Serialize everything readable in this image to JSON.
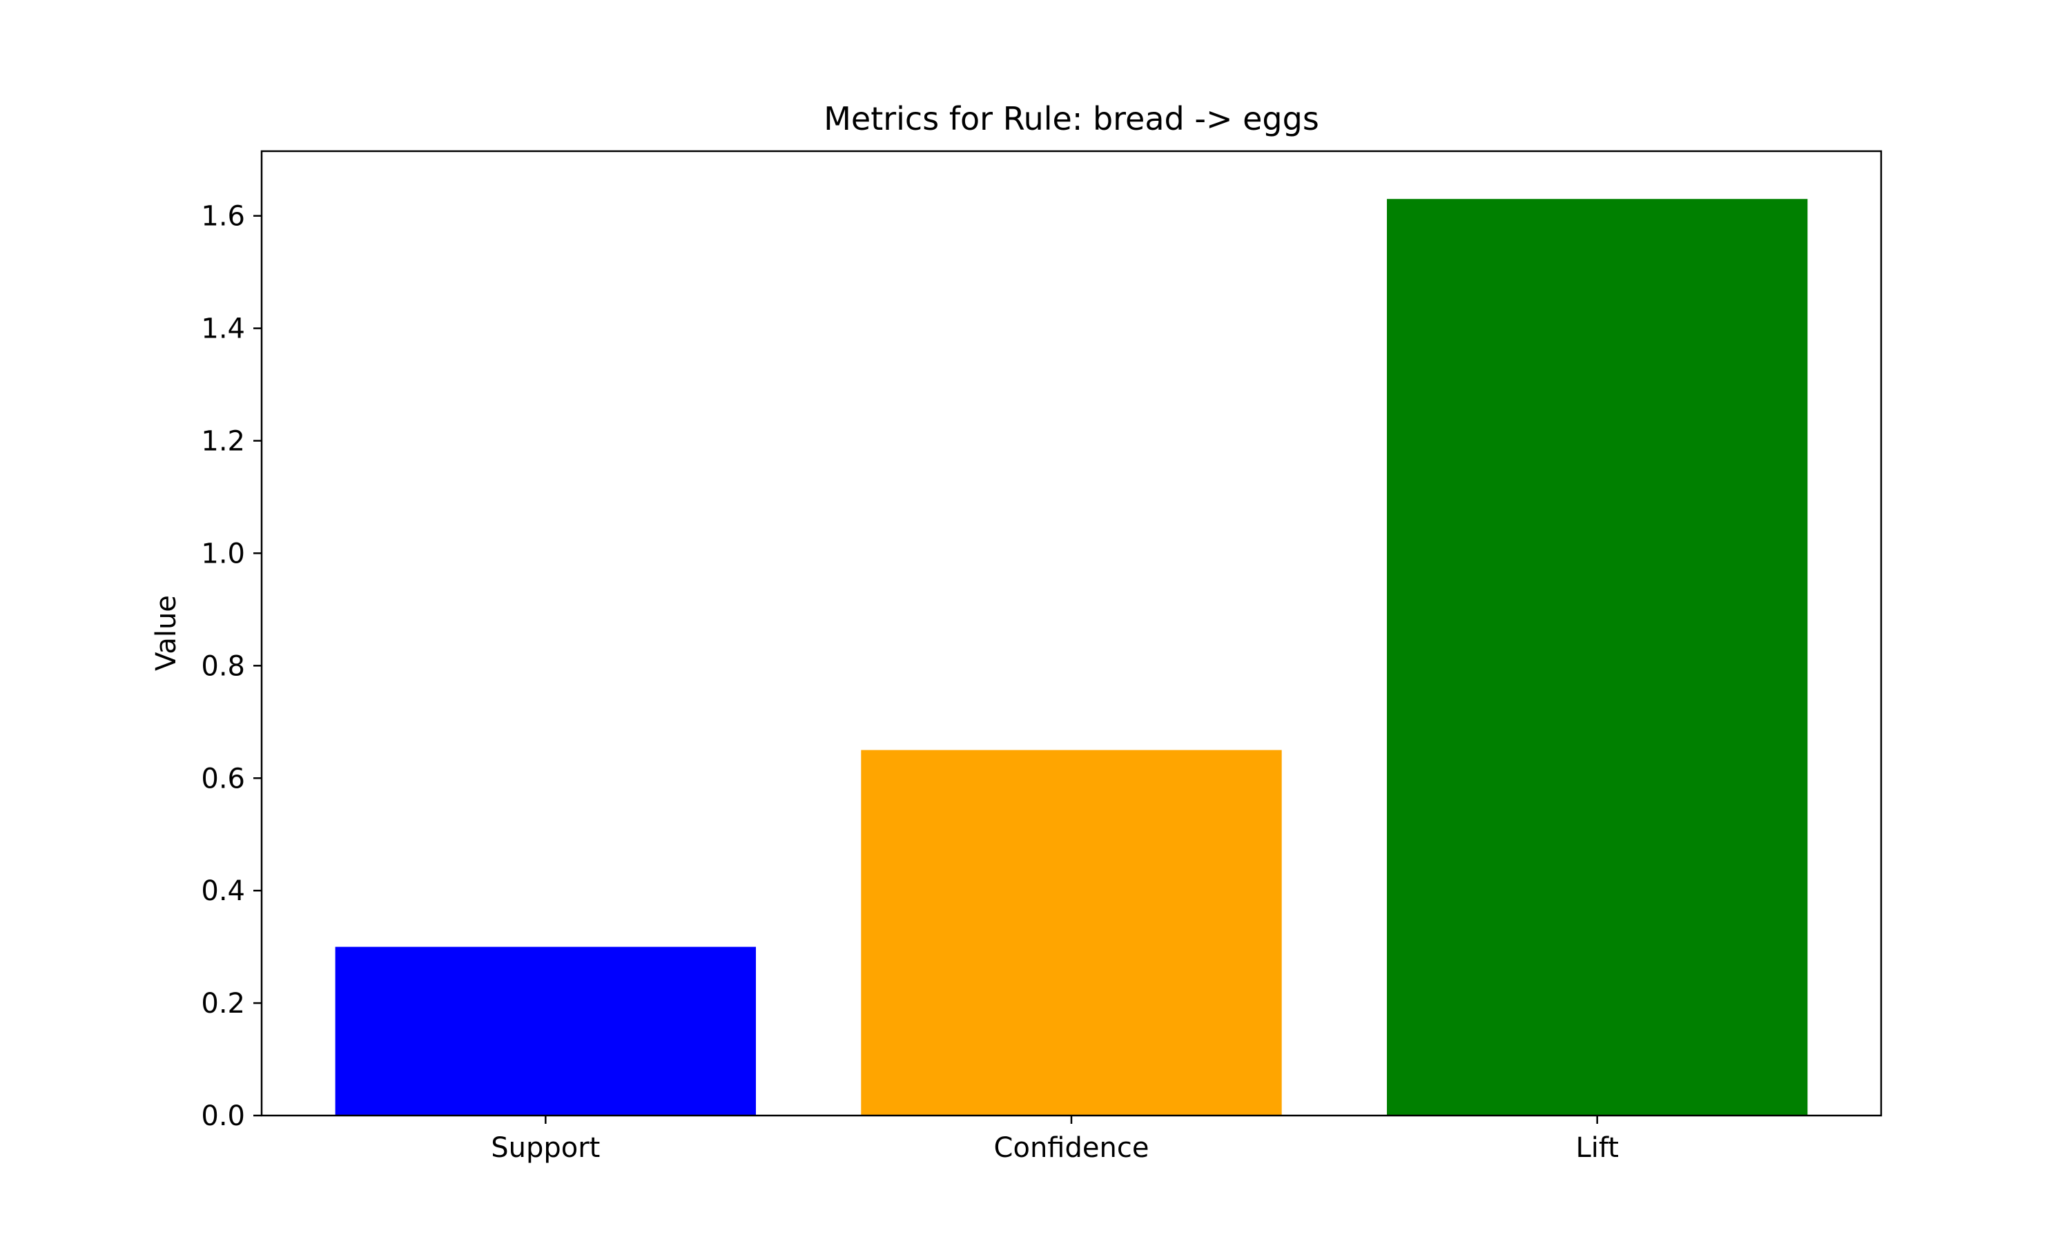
{
  "chart_data": {
    "type": "bar",
    "title": "Metrics for Rule: bread -> eggs",
    "xlabel": "",
    "ylabel": "Value",
    "categories": [
      "Support",
      "Confidence",
      "Lift"
    ],
    "values": [
      0.3,
      0.65,
      1.63
    ],
    "colors": [
      "#0000ff",
      "#ffa500",
      "#008000"
    ],
    "ylim": [
      0,
      1.715
    ],
    "yticks": [
      0.0,
      0.2,
      0.4,
      0.6,
      0.8,
      1.0,
      1.2,
      1.4,
      1.6
    ],
    "ytick_labels": [
      "0.0",
      "0.2",
      "0.4",
      "0.6",
      "0.8",
      "1.0",
      "1.2",
      "1.4",
      "1.6"
    ],
    "grid": false,
    "legend": "none"
  }
}
